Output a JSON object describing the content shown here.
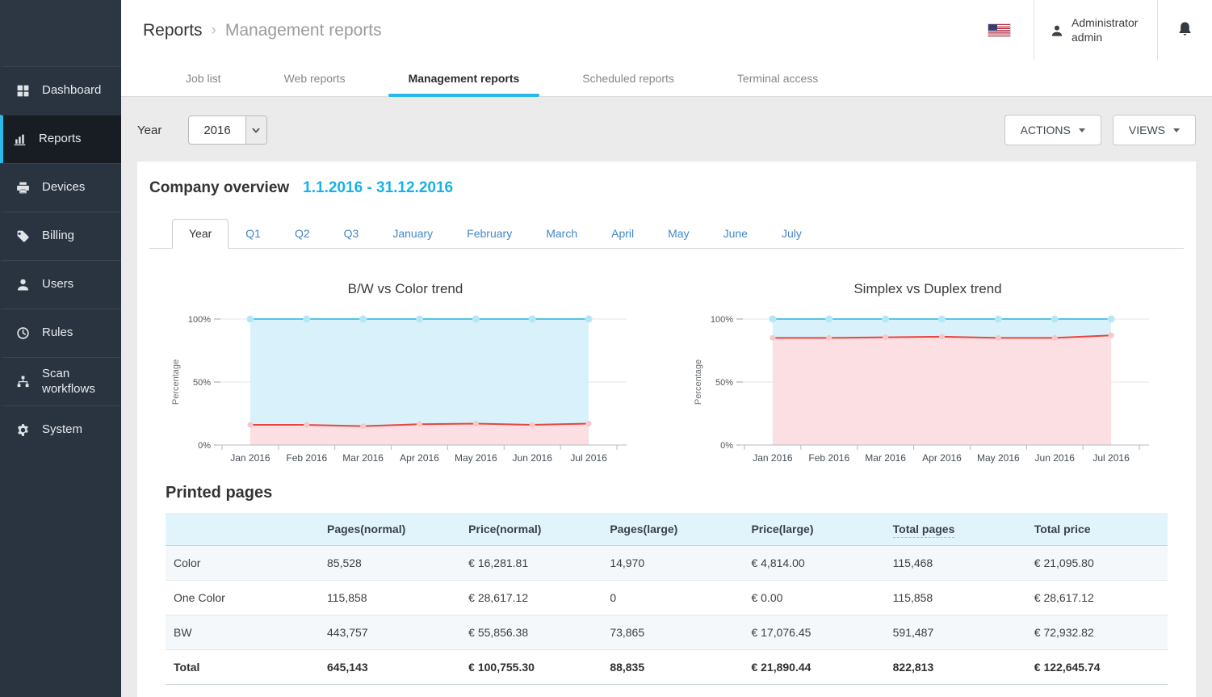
{
  "header": {
    "breadcrumb_root": "Reports",
    "breadcrumb_separator": "›",
    "breadcrumb_current": "Management reports",
    "user_name": "Administrator",
    "user_role": "admin",
    "icons": [
      "us-flag-icon",
      "user-icon",
      "bell-icon"
    ]
  },
  "sidebar": {
    "items": [
      {
        "label": "Dashboard",
        "icon": "dashboard-grid",
        "active": false
      },
      {
        "label": "Reports",
        "icon": "bar-chart",
        "active": true
      },
      {
        "label": "Devices",
        "icon": "printer",
        "active": false
      },
      {
        "label": "Billing",
        "icon": "tag",
        "active": false
      },
      {
        "label": "Users",
        "icon": "user",
        "active": false
      },
      {
        "label": "Rules",
        "icon": "clock",
        "active": false
      },
      {
        "label": "Scan workflows",
        "icon": "sitemap",
        "active": false
      },
      {
        "label": "System",
        "icon": "gear",
        "active": false
      }
    ],
    "accent_color": "#29b8e8",
    "bg_color": "#2a3340"
  },
  "top_tabs": [
    {
      "label": "Job list",
      "active": false
    },
    {
      "label": "Web reports",
      "active": false
    },
    {
      "label": "Management reports",
      "active": true
    },
    {
      "label": "Scheduled reports",
      "active": false
    },
    {
      "label": "Terminal access",
      "active": false
    }
  ],
  "filters": {
    "year_label": "Year",
    "year_value": "2016"
  },
  "toolbar": {
    "actions_label": "ACTIONS",
    "views_label": "VIEWS"
  },
  "report": {
    "title": "Company overview",
    "date_range": "1.1.2016 - 31.12.2016",
    "active_period": "Year",
    "period_tabs": [
      "Year",
      "Q1",
      "Q2",
      "Q3",
      "January",
      "February",
      "March",
      "April",
      "May",
      "June",
      "July"
    ]
  },
  "chart_data": [
    {
      "type": "area",
      "title": "B/W vs Color trend",
      "ylabel": "Percentage",
      "ylim": [
        0,
        100
      ],
      "grid": true,
      "legend": "none",
      "yticks": [
        {
          "value": 0,
          "label": "0%"
        },
        {
          "value": 50,
          "label": "50%"
        },
        {
          "value": 100,
          "label": "100%"
        }
      ],
      "categories": [
        "Jan 2016",
        "Feb 2016",
        "Mar 2016",
        "Apr 2016",
        "May 2016",
        "Jun 2016",
        "Jul 2016"
      ],
      "series": [
        {
          "name": "B/W",
          "color": "#55c4e9",
          "fill": "#d8f1fa",
          "dot": "#b7e7f7",
          "dot_r": 4.5,
          "cumulative_line": [
            100,
            100,
            100,
            100,
            100,
            100,
            100
          ]
        },
        {
          "name": "Color",
          "color": "#e9443d",
          "fill": "#fbdfe2",
          "dot": "#f5c8cc",
          "dot_r": 3.5,
          "cumulative_line": [
            16,
            16,
            15,
            16.5,
            17,
            16,
            17
          ]
        }
      ]
    },
    {
      "type": "area",
      "title": "Simplex vs Duplex trend",
      "ylabel": "Percentage",
      "ylim": [
        0,
        100
      ],
      "grid": true,
      "legend": "none",
      "yticks": [
        {
          "value": 0,
          "label": "0%"
        },
        {
          "value": 50,
          "label": "50%"
        },
        {
          "value": 100,
          "label": "100%"
        }
      ],
      "categories": [
        "Jan 2016",
        "Feb 2016",
        "Mar 2016",
        "Apr 2016",
        "May 2016",
        "Jun 2016",
        "Jul 2016"
      ],
      "series": [
        {
          "name": "Duplex",
          "color": "#55c4e9",
          "fill": "#d8f1fa",
          "dot": "#b7e7f7",
          "dot_r": 4.5,
          "cumulative_line": [
            100,
            100,
            100,
            100,
            100,
            100,
            100
          ]
        },
        {
          "name": "Simplex",
          "color": "#e9443d",
          "fill": "#fbdfe2",
          "dot": "#f5c8cc",
          "dot_r": 3.5,
          "cumulative_line": [
            85,
            85,
            85.5,
            86,
            85,
            85,
            87
          ]
        }
      ]
    }
  ],
  "table": {
    "title": "Printed pages",
    "columns": [
      {
        "label": "",
        "hint": false
      },
      {
        "label": "Pages(normal)",
        "hint": false
      },
      {
        "label": "Price(normal)",
        "hint": false
      },
      {
        "label": "Pages(large)",
        "hint": false
      },
      {
        "label": "Price(large)",
        "hint": false
      },
      {
        "label": "Total pages",
        "hint": true
      },
      {
        "label": "Total price",
        "hint": false
      }
    ],
    "rows": [
      {
        "label": "Color",
        "cells": [
          "85,528",
          "€ 16,281.81",
          "14,970",
          "€ 4,814.00",
          "115,468",
          "€ 21,095.80"
        ],
        "bold": false
      },
      {
        "label": "One Color",
        "cells": [
          "115,858",
          "€ 28,617.12",
          "0",
          "€ 0.00",
          "115,858",
          "€ 28,617.12"
        ],
        "bold": false
      },
      {
        "label": "BW",
        "cells": [
          "443,757",
          "€ 55,856.38",
          "73,865",
          "€ 17,076.45",
          "591,487",
          "€ 72,932.82"
        ],
        "bold": false
      },
      {
        "label": "Total",
        "cells": [
          "645,143",
          "€ 100,755.30",
          "88,835",
          "€ 21,890.44",
          "822,813",
          "€ 122,645.74"
        ],
        "bold": true
      }
    ]
  }
}
